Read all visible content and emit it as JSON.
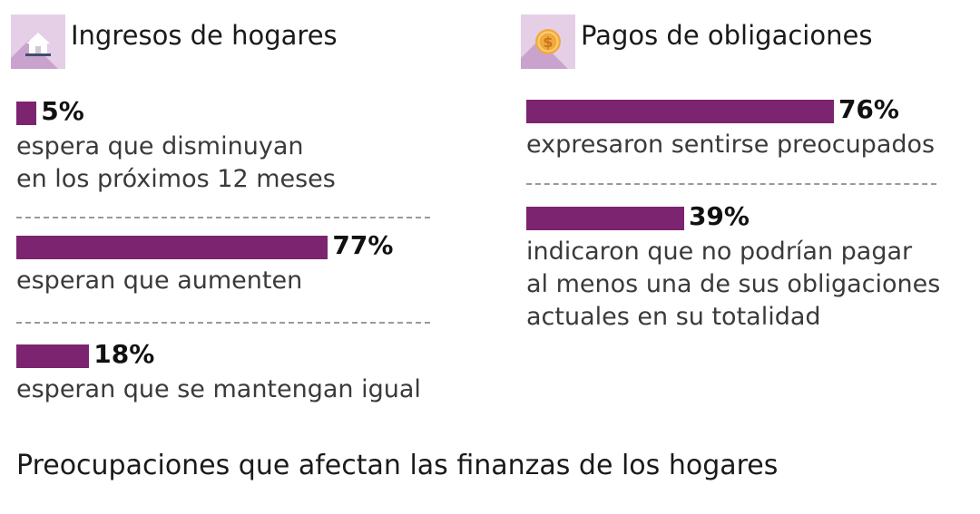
{
  "chart_data": [
    {
      "type": "bar",
      "orientation": "horizontal",
      "title": "Ingresos de hogares",
      "icon": "house-icon",
      "max": 100,
      "bars": [
        {
          "value": 5,
          "label": "5%",
          "description": "espera que disminuyan\nen los próximos 12 meses"
        },
        {
          "value": 77,
          "label": "77%",
          "description": "esperan que aumenten"
        },
        {
          "value": 18,
          "label": "18%",
          "description": "esperan que se mantengan igual"
        }
      ]
    },
    {
      "type": "bar",
      "orientation": "horizontal",
      "title": "Pagos de obligaciones",
      "icon": "coin-icon",
      "max": 100,
      "bars": [
        {
          "value": 76,
          "label": "76%",
          "description": "expresaron sentirse preocupados"
        },
        {
          "value": 39,
          "label": "39%",
          "description": "indicaron que no podrían pagar\nal menos una de sus obligaciones\nactuales en su totalidad"
        }
      ]
    }
  ],
  "footer": {
    "title": "Preocupaciones que afectan las finanzas de los hogares"
  },
  "colors": {
    "bar": "#7c246f",
    "icon_bg": "#e4cfe6",
    "icon_shadow": "#c9a3cd",
    "coin": "#f2a93b"
  }
}
